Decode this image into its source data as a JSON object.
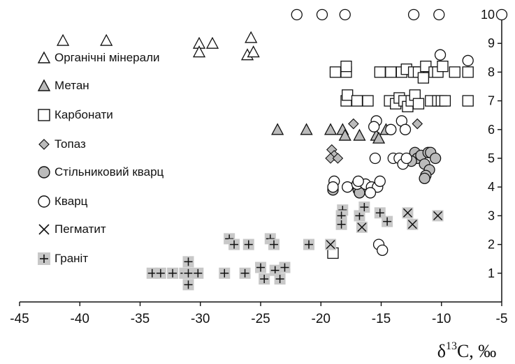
{
  "chart_data": {
    "type": "scatter",
    "xlim": [
      -45,
      -5
    ],
    "ylim": [
      0,
      10
    ],
    "xticks": [
      "-45",
      "-40",
      "-35",
      "-30",
      "-25",
      "-20",
      "-15",
      "-10",
      "-5"
    ],
    "yticks": [
      "1",
      "2",
      "3",
      "4",
      "5",
      "6",
      "7",
      "8",
      "9",
      "10"
    ],
    "xlabel_main": "δ",
    "xlabel_sup": "13",
    "xlabel_rest": "C, ‰",
    "ylabel": "",
    "grid": false,
    "legend_position": "left",
    "series": [
      {
        "name": "Органічні мінерали",
        "marker": "triangle-open",
        "points": [
          [
            -41.4,
            9.1
          ],
          [
            -37.8,
            9.1
          ],
          [
            -30.1,
            9.0
          ],
          [
            -29.0,
            9.0
          ],
          [
            -25.8,
            9.2
          ],
          [
            -30.1,
            8.7
          ],
          [
            -26.1,
            8.6
          ],
          [
            -25.6,
            8.7
          ]
        ]
      },
      {
        "name": "Метан",
        "marker": "triangle-gray",
        "points": [
          [
            -23.6,
            6.0
          ],
          [
            -21.2,
            6.0
          ],
          [
            -19.2,
            6.0
          ],
          [
            -18.2,
            6.0
          ],
          [
            -18.0,
            5.8
          ],
          [
            -16.8,
            5.8
          ],
          [
            -15.4,
            5.8
          ],
          [
            -15.2,
            5.7
          ],
          [
            -14.6,
            6.0
          ]
        ]
      },
      {
        "name": "Карбонати",
        "marker": "square-open",
        "points": [
          [
            -18.8,
            8.0
          ],
          [
            -17.9,
            8.0
          ],
          [
            -17.9,
            8.2
          ],
          [
            -15.1,
            8.0
          ],
          [
            -14.2,
            8.0
          ],
          [
            -13.3,
            8.0
          ],
          [
            -12.9,
            8.1
          ],
          [
            -12.3,
            8.0
          ],
          [
            -11.9,
            8.0
          ],
          [
            -11.5,
            7.8
          ],
          [
            -11.3,
            8.2
          ],
          [
            -10.6,
            8.0
          ],
          [
            -10.3,
            8.0
          ],
          [
            -9.9,
            8.2
          ],
          [
            -8.9,
            8.0
          ],
          [
            -7.8,
            8.0
          ],
          [
            -17.9,
            7.0
          ],
          [
            -17.8,
            7.2
          ],
          [
            -17.0,
            7.0
          ],
          [
            -16.1,
            7.0
          ],
          [
            -14.3,
            7.0
          ],
          [
            -13.8,
            6.9
          ],
          [
            -13.5,
            7.1
          ],
          [
            -13.1,
            7.0
          ],
          [
            -12.8,
            6.8
          ],
          [
            -12.5,
            7.0
          ],
          [
            -12.2,
            7.2
          ],
          [
            -11.9,
            6.9
          ],
          [
            -10.9,
            7.0
          ],
          [
            -10.3,
            7.0
          ],
          [
            -10.0,
            7.0
          ],
          [
            -9.7,
            7.0
          ],
          [
            -7.8,
            7.0
          ],
          [
            -19.0,
            1.7
          ]
        ]
      },
      {
        "name": "Топаз",
        "marker": "diamond-gray",
        "points": [
          [
            -17.3,
            6.2
          ],
          [
            -12.0,
            6.2
          ],
          [
            -19.1,
            5.3
          ],
          [
            -18.9,
            5.1
          ],
          [
            -19.2,
            5.0
          ],
          [
            -18.6,
            5.0
          ]
        ]
      },
      {
        "name": "Стільниковий кварц",
        "marker": "circle-gray",
        "points": [
          [
            -12.2,
            5.2
          ],
          [
            -12.0,
            5.0
          ],
          [
            -11.7,
            5.1
          ],
          [
            -11.1,
            5.2
          ],
          [
            -10.9,
            5.2
          ],
          [
            -10.5,
            5.0
          ],
          [
            -12.5,
            4.9
          ],
          [
            -11.4,
            4.8
          ],
          [
            -11.0,
            4.6
          ],
          [
            -11.3,
            4.4
          ],
          [
            -11.4,
            4.3
          ],
          [
            -19.0,
            3.9
          ],
          [
            -16.9,
            3.9
          ],
          [
            -16.8,
            3.8
          ]
        ]
      },
      {
        "name": "Кварц",
        "marker": "circle-open",
        "points": [
          [
            -22.0,
            10.0
          ],
          [
            -19.9,
            10.0
          ],
          [
            -18.0,
            10.0
          ],
          [
            -12.3,
            10.0
          ],
          [
            -10.2,
            10.0
          ],
          [
            -5.0,
            10.0
          ],
          [
            -10.1,
            8.6
          ],
          [
            -7.8,
            8.4
          ],
          [
            -15.4,
            6.3
          ],
          [
            -15.6,
            6.1
          ],
          [
            -13.3,
            6.3
          ],
          [
            -13.0,
            6.0
          ],
          [
            -14.2,
            6.0
          ],
          [
            -15.5,
            5.0
          ],
          [
            -14.0,
            5.0
          ],
          [
            -13.5,
            5.0
          ],
          [
            -13.2,
            4.8
          ],
          [
            -12.9,
            5.0
          ],
          [
            -18.9,
            4.2
          ],
          [
            -19.0,
            4.0
          ],
          [
            -17.8,
            4.0
          ],
          [
            -17.0,
            4.1
          ],
          [
            -16.3,
            4.1
          ],
          [
            -16.9,
            4.2
          ],
          [
            -15.8,
            4.0
          ],
          [
            -15.3,
            4.0
          ],
          [
            -15.1,
            4.2
          ],
          [
            -15.9,
            3.8
          ],
          [
            -15.2,
            2.0
          ],
          [
            -14.9,
            1.8
          ]
        ]
      },
      {
        "name": "Пегматит",
        "marker": "x-gray",
        "points": [
          [
            -19.2,
            2.0
          ],
          [
            -16.6,
            2.6
          ],
          [
            -12.8,
            3.1
          ],
          [
            -12.4,
            2.7
          ],
          [
            -10.3,
            3.0
          ]
        ]
      },
      {
        "name": "Граніт",
        "marker": "plus-gray",
        "points": [
          [
            -34.0,
            1.0
          ],
          [
            -33.3,
            1.0
          ],
          [
            -32.3,
            1.0
          ],
          [
            -31.3,
            1.0
          ],
          [
            -31.0,
            1.4
          ],
          [
            -31.0,
            1.0
          ],
          [
            -31.0,
            0.6
          ],
          [
            -30.2,
            1.0
          ],
          [
            -28.0,
            1.0
          ],
          [
            -27.6,
            2.2
          ],
          [
            -27.2,
            2.0
          ],
          [
            -26.3,
            1.0
          ],
          [
            -26.0,
            2.0
          ],
          [
            -25.0,
            1.2
          ],
          [
            -24.7,
            0.8
          ],
          [
            -24.2,
            2.2
          ],
          [
            -23.9,
            2.0
          ],
          [
            -23.8,
            1.1
          ],
          [
            -23.4,
            0.8
          ],
          [
            -23.0,
            1.2
          ],
          [
            -21.0,
            2.0
          ],
          [
            -18.2,
            3.2
          ],
          [
            -18.3,
            3.0
          ],
          [
            -18.3,
            2.7
          ],
          [
            -16.8,
            3.0
          ],
          [
            -16.4,
            3.3
          ],
          [
            -15.1,
            3.1
          ],
          [
            -14.5,
            2.8
          ]
        ]
      }
    ]
  }
}
